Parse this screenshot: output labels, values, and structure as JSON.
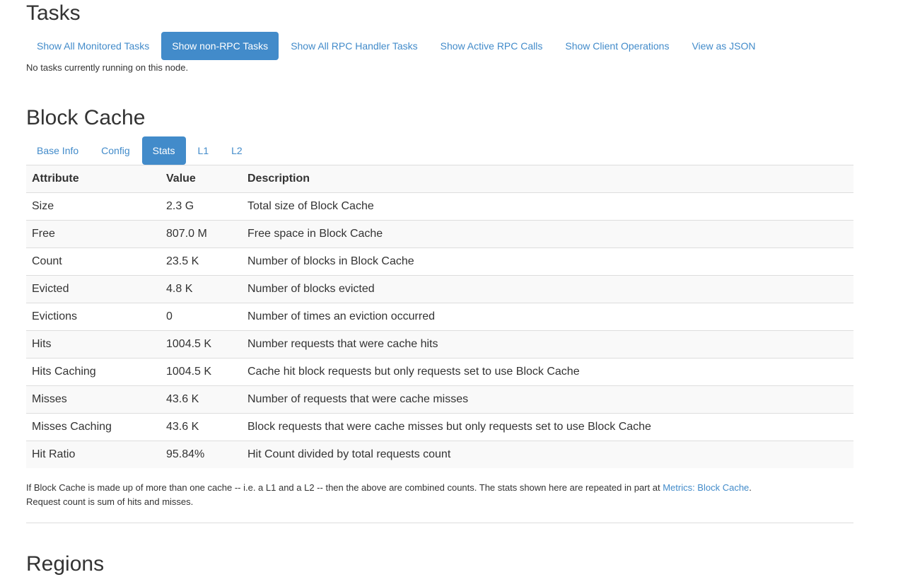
{
  "tasks": {
    "title": "Tasks",
    "tabs": [
      {
        "label": "Show All Monitored Tasks",
        "active": false
      },
      {
        "label": "Show non-RPC Tasks",
        "active": true
      },
      {
        "label": "Show All RPC Handler Tasks",
        "active": false
      },
      {
        "label": "Show Active RPC Calls",
        "active": false
      },
      {
        "label": "Show Client Operations",
        "active": false
      },
      {
        "label": "View as JSON",
        "active": false
      }
    ],
    "message": "No tasks currently running on this node."
  },
  "block_cache": {
    "title": "Block Cache",
    "tabs": [
      {
        "label": "Base Info",
        "active": false
      },
      {
        "label": "Config",
        "active": false
      },
      {
        "label": "Stats",
        "active": true
      },
      {
        "label": "L1",
        "active": false
      },
      {
        "label": "L2",
        "active": false
      }
    ],
    "headers": [
      "Attribute",
      "Value",
      "Description"
    ],
    "rows": [
      [
        "Size",
        "2.3 G",
        "Total size of Block Cache"
      ],
      [
        "Free",
        "807.0 M",
        "Free space in Block Cache"
      ],
      [
        "Count",
        "23.5 K",
        "Number of blocks in Block Cache"
      ],
      [
        "Evicted",
        "4.8 K",
        "Number of blocks evicted"
      ],
      [
        "Evictions",
        "0",
        "Number of times an eviction occurred"
      ],
      [
        "Hits",
        "1004.5 K",
        "Number requests that were cache hits"
      ],
      [
        "Hits Caching",
        "1004.5 K",
        "Cache hit block requests but only requests set to use Block Cache"
      ],
      [
        "Misses",
        "43.6 K",
        "Number of requests that were cache misses"
      ],
      [
        "Misses Caching",
        "43.6 K",
        "Block requests that were cache misses but only requests set to use Block Cache"
      ],
      [
        "Hit Ratio",
        "95.84%",
        "Hit Count divided by total requests count"
      ]
    ],
    "note_before": "If Block Cache is made up of more than one cache -- i.e. a L1 and a L2 -- then the above are combined counts. The stats shown here are repeated in part at ",
    "note_link": "Metrics: Block Cache",
    "note_after": ".",
    "note_line2": "Request count is sum of hits and misses."
  },
  "regions": {
    "title": "Regions"
  },
  "colors": {
    "accent": "#428bca",
    "stripe": "#f9f9f9"
  }
}
